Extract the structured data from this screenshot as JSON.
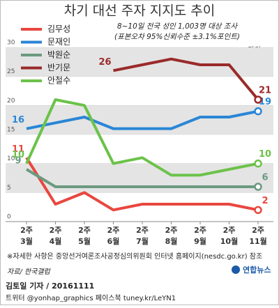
{
  "chart_data": {
    "type": "line",
    "title": "차기 대선 주자 지지도 추이",
    "subtitle": [
      "8~10일 전국 성인 1,003명 대상 조사",
      "(표본오차 95%신뢰수준 ±3.1%포인트)"
    ],
    "unit": "단위: %",
    "categories": [
      "2주 3월",
      "2주 4월",
      "2주 5월",
      "2주 6월",
      "2주 7월",
      "2주 8월",
      "2주 9월",
      "2주 10월",
      "2주 11월"
    ],
    "series": [
      {
        "name": "김무성",
        "color": "#e8473f",
        "values": [
          11,
          3,
          5,
          2,
          3,
          3,
          3,
          3,
          2
        ]
      },
      {
        "name": "문재인",
        "color": "#2a86d6",
        "values": [
          16,
          17,
          18,
          16,
          16,
          16,
          18,
          18,
          19
        ]
      },
      {
        "name": "박원순",
        "color": "#6b9a80",
        "values": [
          9,
          6,
          6,
          6,
          6,
          6,
          6,
          6,
          6
        ]
      },
      {
        "name": "반기문",
        "color": "#9b2a2a",
        "values": [
          null,
          null,
          null,
          26,
          27,
          28,
          27,
          27,
          21
        ]
      },
      {
        "name": "안철수",
        "color": "#6cc24a",
        "values": [
          10,
          21,
          20,
          10,
          11,
          8,
          8,
          9,
          10
        ]
      }
    ],
    "ylim": [
      0,
      30
    ],
    "yticks": [
      0,
      5,
      10,
      15,
      20,
      25,
      30
    ],
    "grid": true,
    "note": "※자세한 사항은 중앙선거여론조사공정심의위원회 인터넷 홈페이지(nesdc.go.kr) 참조",
    "source": "자료/ 한국갤럽",
    "byline": "김토일 기자 / 20161111",
    "social": "트위터 @yonhap_graphics 페이스북 tuney.kr/LeYN1",
    "logo": "연합뉴스"
  }
}
